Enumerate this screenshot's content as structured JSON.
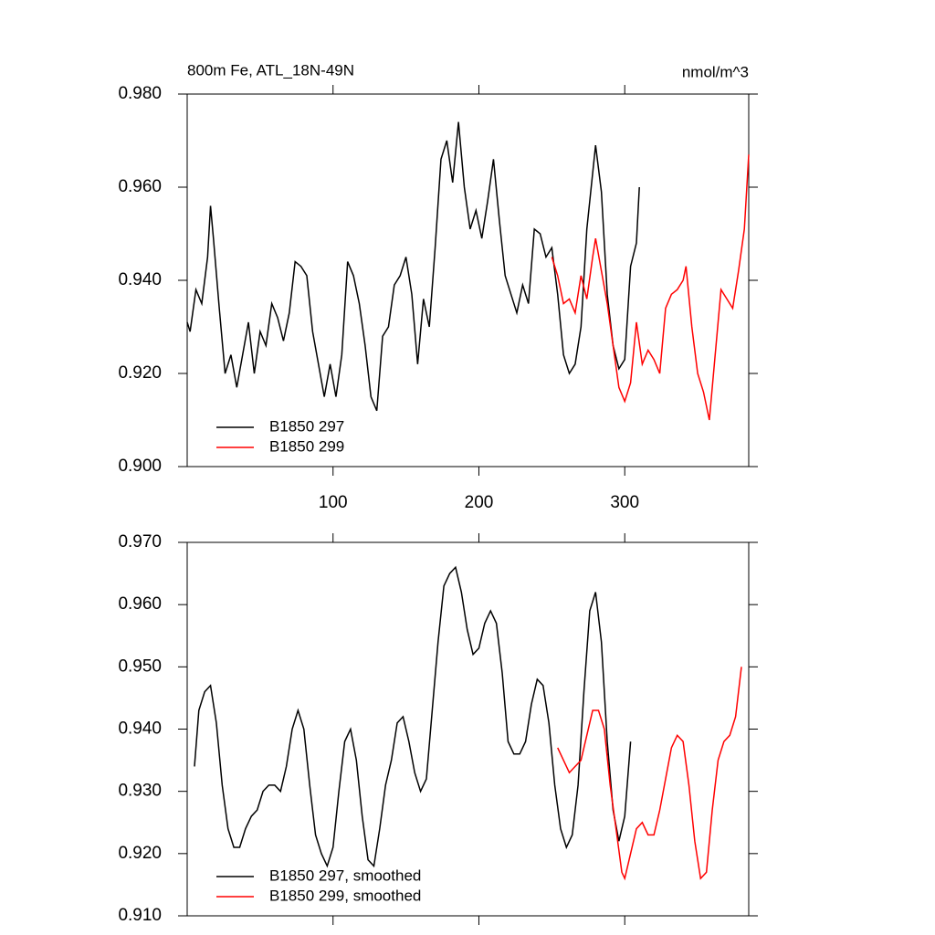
{
  "chart_data": [
    {
      "type": "line",
      "title": "800m Fe, ATL_18N-49N",
      "units": "nmol/m^3",
      "xlim": [
        0,
        385
      ],
      "xticks": [
        100,
        200,
        300
      ],
      "ylim": [
        0.9,
        0.98
      ],
      "yticks": [
        {
          "value": 0.9,
          "label": "0.900"
        },
        {
          "value": 0.92,
          "label": "0.920"
        },
        {
          "value": 0.94,
          "label": "0.940"
        },
        {
          "value": 0.96,
          "label": "0.960"
        },
        {
          "value": 0.98,
          "label": "0.980"
        }
      ],
      "legend": "lower left",
      "series": [
        {
          "name": "B1850 297",
          "color": "#000000",
          "x": [
            0,
            2,
            6,
            10,
            14,
            16,
            18,
            22,
            26,
            30,
            34,
            38,
            42,
            46,
            50,
            54,
            58,
            62,
            66,
            70,
            74,
            78,
            82,
            86,
            90,
            94,
            98,
            102,
            106,
            110,
            114,
            118,
            122,
            126,
            130,
            134,
            138,
            142,
            146,
            150,
            154,
            158,
            162,
            166,
            170,
            174,
            178,
            182,
            186,
            190,
            194,
            198,
            202,
            206,
            210,
            214,
            218,
            222,
            226,
            230,
            234,
            238,
            242,
            246,
            250,
            254,
            258,
            262,
            266,
            270,
            274,
            278,
            280,
            284,
            288,
            292,
            296,
            300,
            304,
            308,
            310
          ],
          "values": [
            0.931,
            0.929,
            0.938,
            0.935,
            0.945,
            0.956,
            0.949,
            0.934,
            0.92,
            0.924,
            0.917,
            0.924,
            0.931,
            0.92,
            0.929,
            0.926,
            0.935,
            0.932,
            0.927,
            0.933,
            0.944,
            0.943,
            0.941,
            0.929,
            0.922,
            0.915,
            0.922,
            0.915,
            0.924,
            0.944,
            0.941,
            0.935,
            0.926,
            0.915,
            0.912,
            0.928,
            0.93,
            0.939,
            0.941,
            0.945,
            0.937,
            0.922,
            0.936,
            0.93,
            0.947,
            0.966,
            0.97,
            0.961,
            0.974,
            0.96,
            0.951,
            0.955,
            0.949,
            0.957,
            0.966,
            0.953,
            0.941,
            0.937,
            0.933,
            0.939,
            0.935,
            0.951,
            0.95,
            0.945,
            0.947,
            0.937,
            0.924,
            0.92,
            0.922,
            0.93,
            0.951,
            0.963,
            0.969,
            0.959,
            0.937,
            0.926,
            0.921,
            0.923,
            0.943,
            0.948,
            0.96
          ]
        },
        {
          "name": "B1850 299",
          "color": "#ff0000",
          "x": [
            250,
            254,
            258,
            262,
            266,
            270,
            274,
            278,
            280,
            284,
            288,
            292,
            296,
            300,
            304,
            308,
            312,
            316,
            320,
            324,
            328,
            332,
            336,
            340,
            342,
            346,
            350,
            354,
            358,
            362,
            366,
            370,
            374,
            378,
            382,
            385
          ],
          "values": [
            0.945,
            0.941,
            0.935,
            0.936,
            0.933,
            0.941,
            0.936,
            0.945,
            0.949,
            0.942,
            0.935,
            0.926,
            0.917,
            0.914,
            0.918,
            0.931,
            0.922,
            0.925,
            0.923,
            0.92,
            0.934,
            0.937,
            0.938,
            0.94,
            0.943,
            0.93,
            0.92,
            0.916,
            0.91,
            0.924,
            0.938,
            0.936,
            0.934,
            0.942,
            0.951,
            0.967
          ]
        }
      ]
    },
    {
      "type": "line",
      "xlim": [
        0,
        385
      ],
      "ylim": [
        0.91,
        0.97
      ],
      "yticks": [
        {
          "value": 0.91,
          "label": "0.910"
        },
        {
          "value": 0.92,
          "label": "0.920"
        },
        {
          "value": 0.93,
          "label": "0.930"
        },
        {
          "value": 0.94,
          "label": "0.940"
        },
        {
          "value": 0.95,
          "label": "0.950"
        },
        {
          "value": 0.96,
          "label": "0.960"
        },
        {
          "value": 0.97,
          "label": "0.970"
        }
      ],
      "legend": "lower left",
      "series": [
        {
          "name": "B1850 297, smoothed",
          "color": "#000000",
          "x": [
            5,
            8,
            12,
            16,
            20,
            24,
            28,
            32,
            36,
            40,
            44,
            48,
            52,
            56,
            60,
            64,
            68,
            72,
            76,
            80,
            84,
            88,
            92,
            96,
            100,
            104,
            108,
            112,
            116,
            120,
            124,
            128,
            132,
            136,
            140,
            144,
            148,
            152,
            156,
            160,
            164,
            168,
            172,
            176,
            180,
            184,
            188,
            192,
            196,
            200,
            204,
            208,
            212,
            216,
            220,
            224,
            228,
            232,
            236,
            240,
            244,
            248,
            252,
            256,
            260,
            264,
            268,
            272,
            276,
            280,
            284,
            288,
            292,
            296,
            300,
            304
          ],
          "values": [
            0.934,
            0.943,
            0.946,
            0.947,
            0.941,
            0.931,
            0.924,
            0.921,
            0.921,
            0.924,
            0.926,
            0.927,
            0.93,
            0.931,
            0.931,
            0.93,
            0.934,
            0.94,
            0.943,
            0.94,
            0.931,
            0.923,
            0.92,
            0.918,
            0.921,
            0.93,
            0.938,
            0.94,
            0.935,
            0.926,
            0.919,
            0.918,
            0.924,
            0.931,
            0.935,
            0.941,
            0.942,
            0.938,
            0.933,
            0.93,
            0.932,
            0.943,
            0.954,
            0.963,
            0.965,
            0.966,
            0.962,
            0.956,
            0.952,
            0.953,
            0.957,
            0.959,
            0.957,
            0.949,
            0.938,
            0.936,
            0.936,
            0.938,
            0.944,
            0.948,
            0.947,
            0.941,
            0.931,
            0.924,
            0.921,
            0.923,
            0.931,
            0.946,
            0.959,
            0.962,
            0.954,
            0.938,
            0.927,
            0.922,
            0.926,
            0.938
          ]
        },
        {
          "name": "B1850 299, smoothed",
          "color": "#ff0000",
          "x": [
            254,
            258,
            262,
            266,
            270,
            274,
            278,
            282,
            286,
            290,
            294,
            298,
            300,
            304,
            308,
            312,
            316,
            320,
            324,
            328,
            332,
            336,
            340,
            344,
            348,
            352,
            356,
            360,
            364,
            368,
            372,
            376,
            380
          ],
          "values": [
            0.937,
            0.935,
            0.933,
            0.934,
            0.935,
            0.939,
            0.943,
            0.943,
            0.94,
            0.931,
            0.924,
            0.917,
            0.916,
            0.92,
            0.924,
            0.925,
            0.923,
            0.923,
            0.927,
            0.932,
            0.937,
            0.939,
            0.938,
            0.931,
            0.922,
            0.916,
            0.917,
            0.927,
            0.935,
            0.938,
            0.939,
            0.942,
            0.95
          ]
        }
      ]
    }
  ]
}
